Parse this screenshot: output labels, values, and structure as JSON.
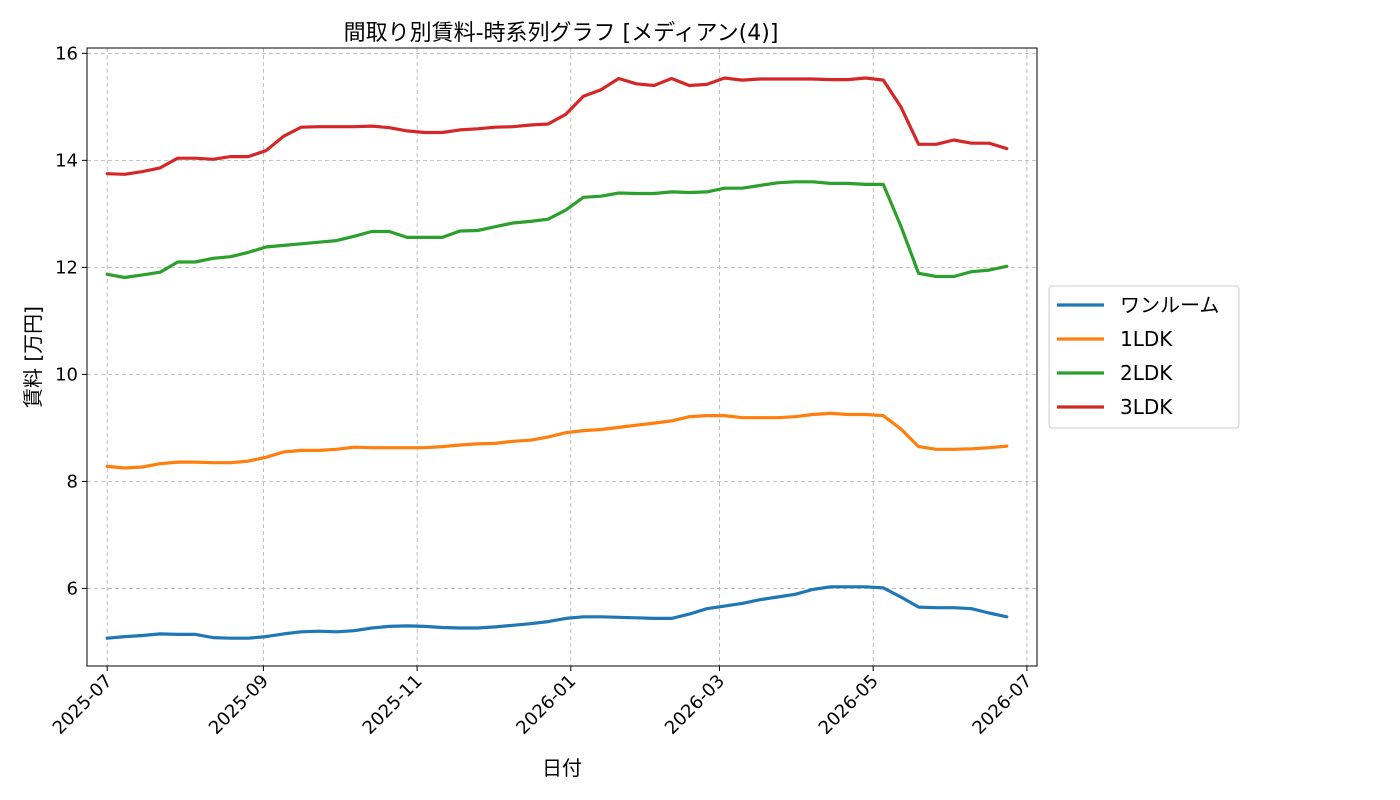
{
  "chart_data": {
    "type": "line",
    "title": "間取り別賃料-時系列グラフ [メディアン(4)]",
    "xlabel": "日付",
    "ylabel": "賃料 [万円]",
    "x_tick_labels": [
      "2025-07",
      "2025-09",
      "2025-11",
      "2026-01",
      "2026-03",
      "2026-05",
      "2026-07"
    ],
    "y_ticks": [
      6,
      8,
      10,
      12,
      14,
      16
    ],
    "xlim": [
      "2025-06-23",
      "2026-07-05"
    ],
    "ylim": [
      4.55,
      16.1
    ],
    "grid": true,
    "legend_position": "right, outside plot area",
    "x": [
      "2025-07-01",
      "2025-07-08",
      "2025-07-15",
      "2025-07-22",
      "2025-07-29",
      "2025-08-05",
      "2025-08-12",
      "2025-08-19",
      "2025-08-26",
      "2025-09-02",
      "2025-09-09",
      "2025-09-16",
      "2025-09-23",
      "2025-09-30",
      "2025-10-07",
      "2025-10-14",
      "2025-10-21",
      "2025-10-28",
      "2025-11-04",
      "2025-11-11",
      "2025-11-18",
      "2025-11-25",
      "2025-12-02",
      "2025-12-09",
      "2025-12-16",
      "2025-12-23",
      "2025-12-30",
      "2026-01-06",
      "2026-01-13",
      "2026-01-20",
      "2026-01-27",
      "2026-02-03",
      "2026-02-10",
      "2026-02-17",
      "2026-02-24",
      "2026-03-03",
      "2026-03-10",
      "2026-03-17",
      "2026-03-24",
      "2026-03-31",
      "2026-04-07",
      "2026-04-14",
      "2026-04-21",
      "2026-04-28",
      "2026-05-05",
      "2026-05-12",
      "2026-05-19",
      "2026-05-26",
      "2026-06-02",
      "2026-06-09",
      "2026-06-16",
      "2026-06-23"
    ],
    "series": [
      {
        "name": "ワンルーム",
        "color": "#1f77b4",
        "values": [
          5.07,
          5.1,
          5.12,
          5.15,
          5.14,
          5.14,
          5.08,
          5.07,
          5.07,
          5.1,
          5.15,
          5.19,
          5.2,
          5.19,
          5.21,
          5.26,
          5.29,
          5.3,
          5.29,
          5.27,
          5.26,
          5.26,
          5.28,
          5.31,
          5.34,
          5.38,
          5.44,
          5.47,
          5.47,
          5.46,
          5.45,
          5.44,
          5.44,
          5.52,
          5.62,
          5.67,
          5.72,
          5.79,
          5.84,
          5.89,
          5.98,
          6.03,
          6.03,
          6.03,
          6.01,
          5.84,
          5.65,
          5.64,
          5.64,
          5.62,
          5.54,
          5.47
        ]
      },
      {
        "name": "1LDK",
        "color": "#ff7f0e",
        "values": [
          8.28,
          8.25,
          8.27,
          8.33,
          8.36,
          8.36,
          8.35,
          8.35,
          8.38,
          8.45,
          8.55,
          8.58,
          8.58,
          8.6,
          8.64,
          8.63,
          8.63,
          8.63,
          8.63,
          8.65,
          8.68,
          8.7,
          8.71,
          8.75,
          8.77,
          8.83,
          8.91,
          8.95,
          8.97,
          9.01,
          9.05,
          9.09,
          9.13,
          9.21,
          9.23,
          9.23,
          9.19,
          9.19,
          9.19,
          9.21,
          9.25,
          9.27,
          9.25,
          9.25,
          9.23,
          8.98,
          8.65,
          8.6,
          8.6,
          8.61,
          8.63,
          8.66
        ]
      },
      {
        "name": "2LDK",
        "color": "#2ca02c",
        "values": [
          11.87,
          11.81,
          11.86,
          11.91,
          12.1,
          12.1,
          12.17,
          12.2,
          12.28,
          12.38,
          12.41,
          12.44,
          12.47,
          12.5,
          12.58,
          12.67,
          12.67,
          12.56,
          12.56,
          12.56,
          12.68,
          12.69,
          12.76,
          12.83,
          12.86,
          12.9,
          13.07,
          13.31,
          13.33,
          13.39,
          13.38,
          13.38,
          13.41,
          13.4,
          13.41,
          13.48,
          13.48,
          13.53,
          13.58,
          13.6,
          13.6,
          13.57,
          13.57,
          13.55,
          13.55,
          12.77,
          11.89,
          11.83,
          11.83,
          11.92,
          11.95,
          12.02
        ]
      },
      {
        "name": "3LDK",
        "color": "#d62728",
        "values": [
          13.75,
          13.74,
          13.79,
          13.86,
          14.04,
          14.04,
          14.02,
          14.07,
          14.07,
          14.18,
          14.45,
          14.62,
          14.63,
          14.63,
          14.63,
          14.64,
          14.61,
          14.55,
          14.52,
          14.52,
          14.57,
          14.59,
          14.62,
          14.63,
          14.66,
          14.68,
          14.86,
          15.2,
          15.32,
          15.53,
          15.43,
          15.4,
          15.53,
          15.4,
          15.42,
          15.54,
          15.5,
          15.52,
          15.52,
          15.52,
          15.52,
          15.51,
          15.51,
          15.54,
          15.5,
          15.0,
          14.3,
          14.3,
          14.38,
          14.32,
          14.32,
          14.22
        ]
      }
    ]
  }
}
